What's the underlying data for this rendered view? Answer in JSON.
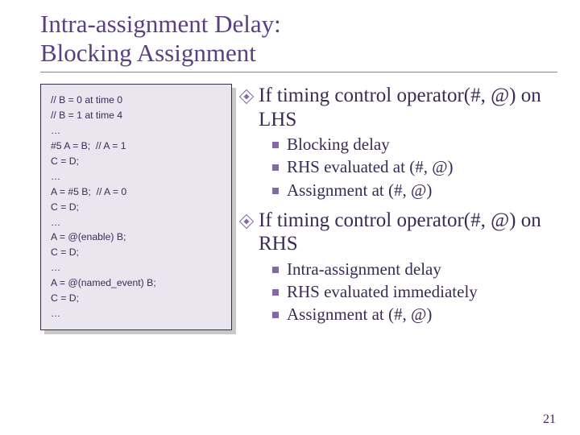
{
  "title_line1": "Intra-assignment Delay:",
  "title_line2": "Blocking Assignment",
  "code_lines": "// B = 0 at time 0\n// B = 1 at time 4\n…\n#5 A = B;  // A = 1\nC = D;\n…\nA = #5 B;  // A = 0\nC = D;\n…\nA = @(enable) B;\nC = D;\n…\nA = @(named_event) B;\nC = D;\n…",
  "p1": "If timing control operator(#, @) on LHS",
  "p1_sub": {
    "a": "Blocking delay",
    "b": "RHS evaluated at (#, @)",
    "c": "Assignment at (#, @)"
  },
  "p2": "If timing control operator(#, @) on RHS",
  "p2_sub": {
    "a": "Intra-assignment delay",
    "b": "RHS evaluated immediately",
    "c": "Assignment at (#, @)"
  },
  "slide_number": "21",
  "colors": {
    "title": "#5a4080",
    "code_bg": "#eae6ef",
    "code_border": "#3a2a55",
    "shadow": "#c9c9c9",
    "text": "#3a2a55",
    "bullet": "#8468a8"
  },
  "fontsizes": {
    "title": 31,
    "code": 12,
    "point": 25,
    "subpoint": 21,
    "slidenum": 16
  }
}
